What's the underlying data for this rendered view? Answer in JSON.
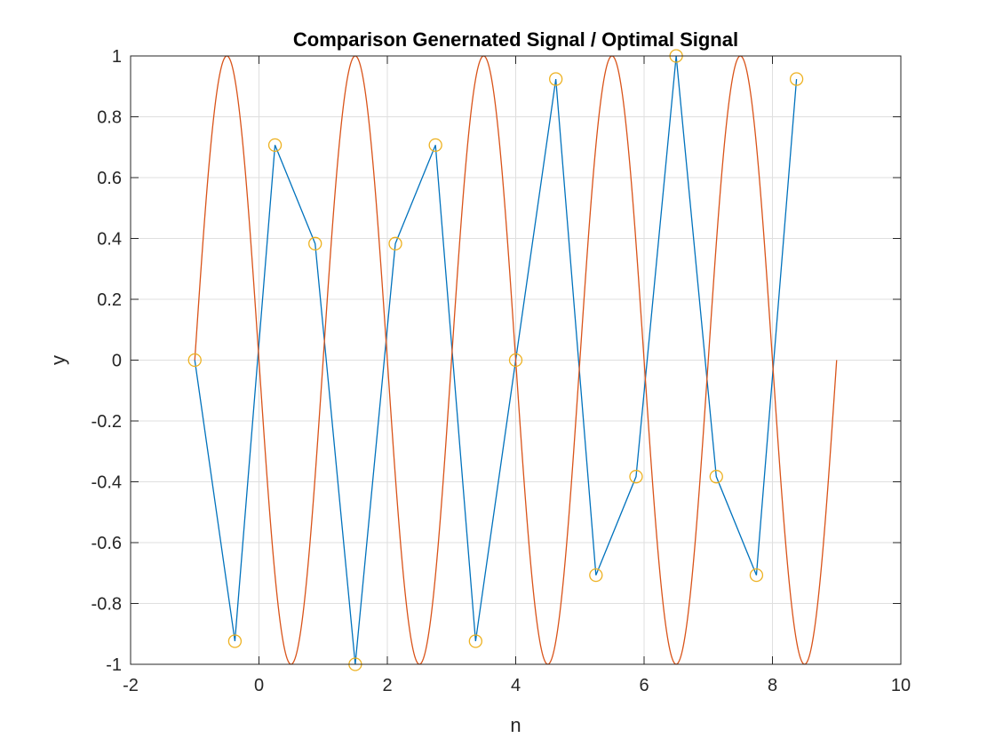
{
  "chart_data": {
    "type": "line",
    "title": "Comparison Genernated Signal / Optimal Signal",
    "xlabel": "n",
    "ylabel": "y",
    "xlim": [
      -2,
      10
    ],
    "ylim": [
      -1,
      1
    ],
    "xticks": [
      -2,
      0,
      2,
      4,
      6,
      8,
      10
    ],
    "yticks": [
      -1,
      -0.8,
      -0.6,
      -0.4,
      -0.2,
      0,
      0.2,
      0.4,
      0.6,
      0.8,
      1
    ],
    "xtick_labels": [
      "-2",
      "0",
      "2",
      "4",
      "6",
      "8",
      "10"
    ],
    "ytick_labels": [
      "-1",
      "-0.8",
      "-0.6",
      "-0.4",
      "-0.2",
      "0",
      "0.2",
      "0.4",
      "0.6",
      "0.8",
      "1"
    ],
    "grid": true,
    "series": [
      {
        "kind": "line-with-markers",
        "color": "#0072BD",
        "marker_color": "#EDB120",
        "marker": "circle",
        "x": [
          -1,
          -0.375,
          0.25,
          0.875,
          1.5,
          2.125,
          2.75,
          3.375,
          4,
          4.625,
          5.25,
          5.875,
          6.5,
          7.125,
          7.75,
          8.375
        ],
        "y": [
          0,
          -0.924,
          0.707,
          0.383,
          -1,
          0.383,
          0.707,
          -0.924,
          0,
          0.924,
          -0.707,
          -0.383,
          1,
          -0.383,
          -0.707,
          0.924
        ]
      },
      {
        "kind": "line",
        "color": "#D95319",
        "function": "sin(pi*(n+1))",
        "x_range": [
          -1,
          9
        ]
      }
    ]
  }
}
